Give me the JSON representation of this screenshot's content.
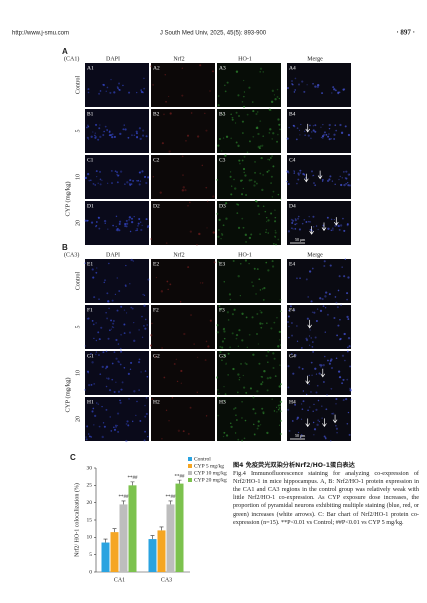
{
  "header": {
    "url": "http://www.j-smu.com",
    "citation": "J South Med Univ, 2025, 45(5): 893-900",
    "page": "· 897 ·"
  },
  "panel_a": {
    "label": "A",
    "region": "(CA1)",
    "columns": [
      "DAPI",
      "Nrf2",
      "HO-1",
      "Merge"
    ],
    "rows": [
      {
        "label": "Control",
        "cells": [
          "A1",
          "A2",
          "A3",
          "A4"
        ]
      },
      {
        "label": "5",
        "cells": [
          "B1",
          "B2",
          "B3",
          "B4"
        ]
      },
      {
        "label": "10",
        "cells": [
          "C1",
          "C2",
          "C3",
          "C4"
        ]
      },
      {
        "label": "20",
        "cells": [
          "D1",
          "D2",
          "D3",
          "D4"
        ]
      }
    ],
    "dose_axis": "CYP (mg/kg)",
    "scale_bar": "50 μm"
  },
  "panel_b": {
    "label": "B",
    "region": "(CA3)",
    "columns": [
      "DAPI",
      "Nrf2",
      "HO-1",
      "Merge"
    ],
    "rows": [
      {
        "label": "Control",
        "cells": [
          "E1",
          "E2",
          "E3",
          "E4"
        ]
      },
      {
        "label": "5",
        "cells": [
          "F1",
          "F2",
          "F3",
          "F4"
        ]
      },
      {
        "label": "10",
        "cells": [
          "G1",
          "G2",
          "G3",
          "G4"
        ]
      },
      {
        "label": "20",
        "cells": [
          "H1",
          "H2",
          "H3",
          "H4"
        ]
      }
    ],
    "dose_axis": "CYP (mg/kg)",
    "scale_bar": "50 μm"
  },
  "chart_data": {
    "type": "bar",
    "panel_label": "C",
    "y_label": "Nrf2/ HO-1 colocalization (%)",
    "categories": [
      "CA1",
      "CA3"
    ],
    "series": [
      {
        "name": "Control",
        "color": "#2aa3e0",
        "values": [
          8.5,
          9.5
        ],
        "errors": [
          1,
          1
        ]
      },
      {
        "name": "CYP 5 mg/kg",
        "color": "#f5a623",
        "values": [
          11.5,
          12
        ],
        "errors": [
          1,
          1
        ]
      },
      {
        "name": "CYP 10 mg/kg",
        "color": "#bdbdbd",
        "values": [
          19.5,
          19.5
        ],
        "errors": [
          1,
          1
        ],
        "significance": [
          "**##",
          "**##"
        ]
      },
      {
        "name": "CYP 20 mg/kg",
        "color": "#7cc24e",
        "values": [
          25,
          25.5
        ],
        "errors": [
          1,
          1
        ],
        "significance": [
          "**##",
          "**##"
        ]
      }
    ],
    "ylim": [
      0,
      30
    ],
    "yticks": [
      0,
      5,
      10,
      15,
      20,
      25,
      30
    ],
    "legend": "top-right"
  },
  "caption": {
    "title_zh": "图4 免疫荧光双染分析Nrf2/HO-1蛋白表达",
    "text": "Fig.4 Immunofluorescence staining for analyzing co-expression of Nrf2/HO-1 in mice hippocampus. A, B: Nrf2/HO-1 protein expression in the CA1 and CA3 regions in the control group was relatively weak with little Nrf2/HO-1 co-expression. As CYP exposure dose increases, the proportion of pyramidal neurons exhibiting multiple staining (blue, red, or green) increases (white arrows). C: Bar chart of Nrf2/HO-1 protein co-expression (n=15). **P<0.01 vs Control; ##P<0.01 vs CYP 5 mg/kg."
  }
}
